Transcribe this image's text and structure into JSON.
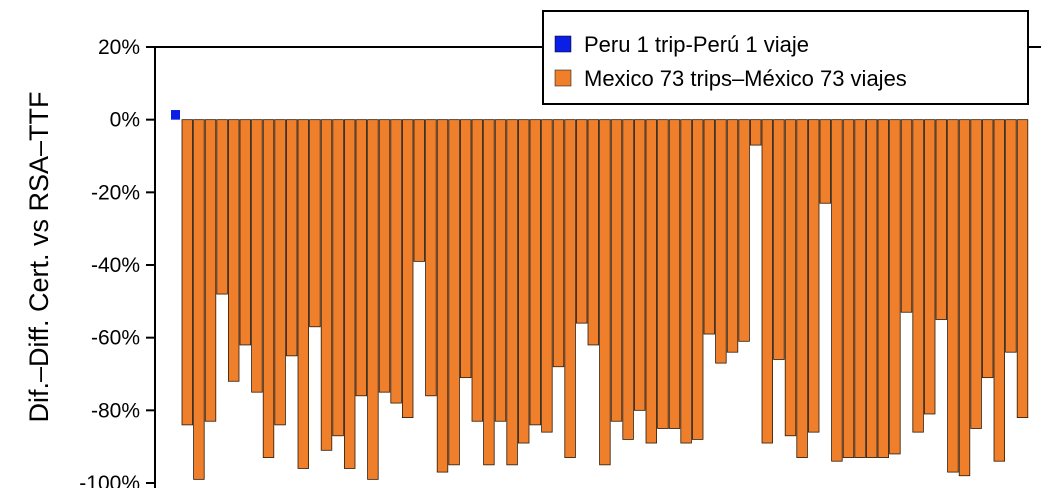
{
  "chart_data": {
    "type": "bar",
    "ylabel": "Dif.–Diff. Cert. vs RSA–TTF",
    "ylim": [
      -100,
      20
    ],
    "y_ticks": [
      20,
      0,
      -20,
      -40,
      -60,
      -80,
      -100
    ],
    "y_tick_labels": [
      "20%",
      "0%",
      "-20%",
      "-40%",
      "-60%",
      "-80%",
      "-100%"
    ],
    "grid": false,
    "legend_position": "top-right",
    "series": [
      {
        "name": "Peru 1 trip-Perú 1 viaje",
        "color": "#0a1ee6",
        "values": [
          1
        ]
      },
      {
        "name": "Mexico 73 trips–México 73 viajes",
        "color": "#ef7f2a",
        "values": [
          -84,
          -99,
          -83,
          -48,
          -72,
          -62,
          -75,
          -93,
          -84,
          -65,
          -96,
          -57,
          -91,
          -87,
          -96,
          -76,
          -99,
          -75,
          -78,
          -82,
          -39,
          -76,
          -97,
          -95,
          -71,
          -83,
          -95,
          -83,
          -95,
          -89,
          -84,
          -86,
          -68,
          -93,
          -56,
          -62,
          -95,
          -83,
          -88,
          -80,
          -89,
          -85,
          -85,
          -89,
          -88,
          -59,
          -67,
          -64,
          -61,
          -7,
          -89,
          -66,
          -87,
          -93,
          -86,
          -23,
          -94,
          -93,
          -93,
          -93,
          -93,
          -92,
          -53,
          -86,
          -81,
          -55,
          -97,
          -98,
          -85,
          -71,
          -94,
          -64,
          -82
        ]
      }
    ]
  }
}
